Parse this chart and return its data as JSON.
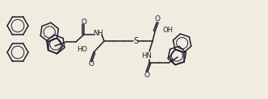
{
  "bg_color": "#f0ece0",
  "line_color": "#1e1e2e",
  "lw": 1.1,
  "fs": 6.0,
  "figsize": [
    3.32,
    1.23
  ],
  "dpi": 100,
  "xlim": [
    0,
    332
  ],
  "ylim": [
    0,
    123
  ]
}
